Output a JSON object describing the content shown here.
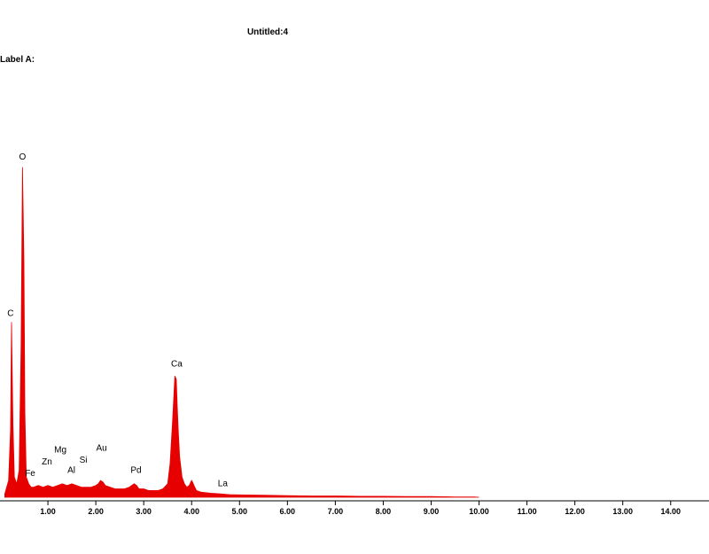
{
  "header": {
    "title": "Untitled:4",
    "label": "Label A:"
  },
  "chart_data": {
    "type": "area",
    "title": "Untitled:4",
    "xlabel": "",
    "ylabel": "",
    "xlim": [
      0,
      14.8
    ],
    "ylim": [
      0,
      1.0
    ],
    "ticks": [
      "1.00",
      "2.00",
      "3.00",
      "4.00",
      "5.00",
      "6.00",
      "7.00",
      "8.00",
      "9.00",
      "10.00",
      "11.00",
      "12.00",
      "13.00",
      "14.00"
    ],
    "tick_values": [
      1,
      2,
      3,
      4,
      5,
      6,
      7,
      8,
      9,
      10,
      11,
      12,
      13,
      14
    ],
    "series": [
      {
        "color": "#e60000",
        "x": [
          0.1,
          0.18,
          0.22,
          0.24,
          0.27,
          0.3,
          0.35,
          0.4,
          0.44,
          0.47,
          0.5,
          0.52,
          0.55,
          0.6,
          0.65,
          0.7,
          0.8,
          0.9,
          1.0,
          1.1,
          1.2,
          1.3,
          1.4,
          1.5,
          1.6,
          1.7,
          1.8,
          1.9,
          2.0,
          2.05,
          2.1,
          2.15,
          2.2,
          2.3,
          2.4,
          2.5,
          2.6,
          2.7,
          2.8,
          2.85,
          2.9,
          3.0,
          3.1,
          3.2,
          3.3,
          3.4,
          3.5,
          3.55,
          3.6,
          3.65,
          3.68,
          3.7,
          3.72,
          3.75,
          3.8,
          3.85,
          3.9,
          3.95,
          4.0,
          4.02,
          4.05,
          4.1,
          4.2,
          4.4,
          4.6,
          4.8,
          5.0,
          5.5,
          6.0,
          6.5,
          7.0,
          7.5,
          8.0,
          8.5,
          9.0,
          9.5,
          9.9,
          10.0
        ],
        "y": [
          0.01,
          0.05,
          0.2,
          0.52,
          0.22,
          0.06,
          0.04,
          0.08,
          0.45,
          0.98,
          0.7,
          0.25,
          0.06,
          0.04,
          0.03,
          0.03,
          0.035,
          0.03,
          0.035,
          0.03,
          0.035,
          0.04,
          0.035,
          0.04,
          0.035,
          0.03,
          0.03,
          0.03,
          0.035,
          0.04,
          0.05,
          0.045,
          0.035,
          0.03,
          0.025,
          0.025,
          0.025,
          0.03,
          0.04,
          0.035,
          0.025,
          0.025,
          0.02,
          0.02,
          0.02,
          0.025,
          0.04,
          0.1,
          0.22,
          0.36,
          0.35,
          0.27,
          0.2,
          0.12,
          0.06,
          0.04,
          0.03,
          0.035,
          0.05,
          0.045,
          0.035,
          0.02,
          0.015,
          0.012,
          0.01,
          0.008,
          0.007,
          0.006,
          0.005,
          0.004,
          0.004,
          0.003,
          0.003,
          0.002,
          0.002,
          0.001,
          0.001,
          0.0
        ]
      }
    ],
    "annotations": [
      {
        "text": "C",
        "x": 0.22,
        "y": 0.53
      },
      {
        "text": "O",
        "x": 0.47,
        "y": 0.995
      },
      {
        "text": "Fe",
        "x": 0.63,
        "y": 0.055
      },
      {
        "text": "Zn",
        "x": 0.98,
        "y": 0.09
      },
      {
        "text": "Mg",
        "x": 1.26,
        "y": 0.125
      },
      {
        "text": "Al",
        "x": 1.49,
        "y": 0.065
      },
      {
        "text": "Si",
        "x": 1.74,
        "y": 0.095
      },
      {
        "text": "Au",
        "x": 2.12,
        "y": 0.13
      },
      {
        "text": "Pd",
        "x": 2.84,
        "y": 0.065
      },
      {
        "text": "Ca",
        "x": 3.69,
        "y": 0.38
      },
      {
        "text": "La",
        "x": 4.65,
        "y": 0.025
      }
    ],
    "grid": false,
    "legend": "none"
  }
}
